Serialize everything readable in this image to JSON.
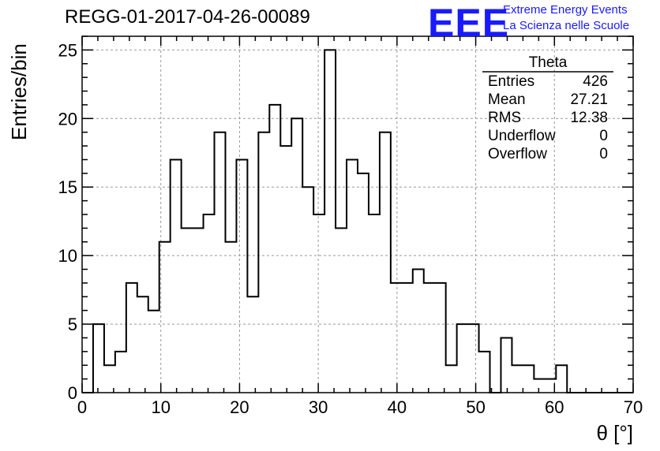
{
  "header": {
    "title": "REGG-01-2017-04-26-00089"
  },
  "logo": {
    "mark": "EEE",
    "line1": "Extreme Energy Events",
    "line2": "La Scienza nelle Scuole",
    "color": "#1a1aff"
  },
  "stats": {
    "title": "Theta",
    "rows": [
      {
        "label": "Entries",
        "value": "426"
      },
      {
        "label": "Mean",
        "value": "27.21"
      },
      {
        "label": "RMS",
        "value": "12.38"
      },
      {
        "label": "Underflow",
        "value": "0"
      },
      {
        "label": "Overflow",
        "value": "0"
      }
    ]
  },
  "chart_data": {
    "type": "bar",
    "subtype": "step-histogram",
    "title": "REGG-01-2017-04-26-00089",
    "xlabel": "θ [°]",
    "ylabel": "Entries/bin",
    "xlim": [
      0,
      70
    ],
    "ylim": [
      0,
      26
    ],
    "grid": true,
    "bin_width": 1.4,
    "bin_edges_start": 0,
    "x_ticks": [
      0,
      10,
      20,
      30,
      40,
      50,
      60,
      70
    ],
    "y_ticks": [
      0,
      5,
      10,
      15,
      20,
      25
    ],
    "values": [
      0,
      5,
      2,
      3,
      8,
      7,
      6,
      11,
      17,
      12,
      12,
      13,
      19,
      11,
      17,
      7,
      19,
      21,
      18,
      20,
      15,
      13,
      25,
      12,
      17,
      16,
      13,
      19,
      8,
      8,
      9,
      8,
      8,
      2,
      5,
      5,
      3,
      0,
      4,
      2,
      2,
      1,
      1,
      2,
      0,
      0,
      0,
      0,
      0,
      0
    ],
    "line_color": "#000000",
    "grid_color": "#999999"
  }
}
